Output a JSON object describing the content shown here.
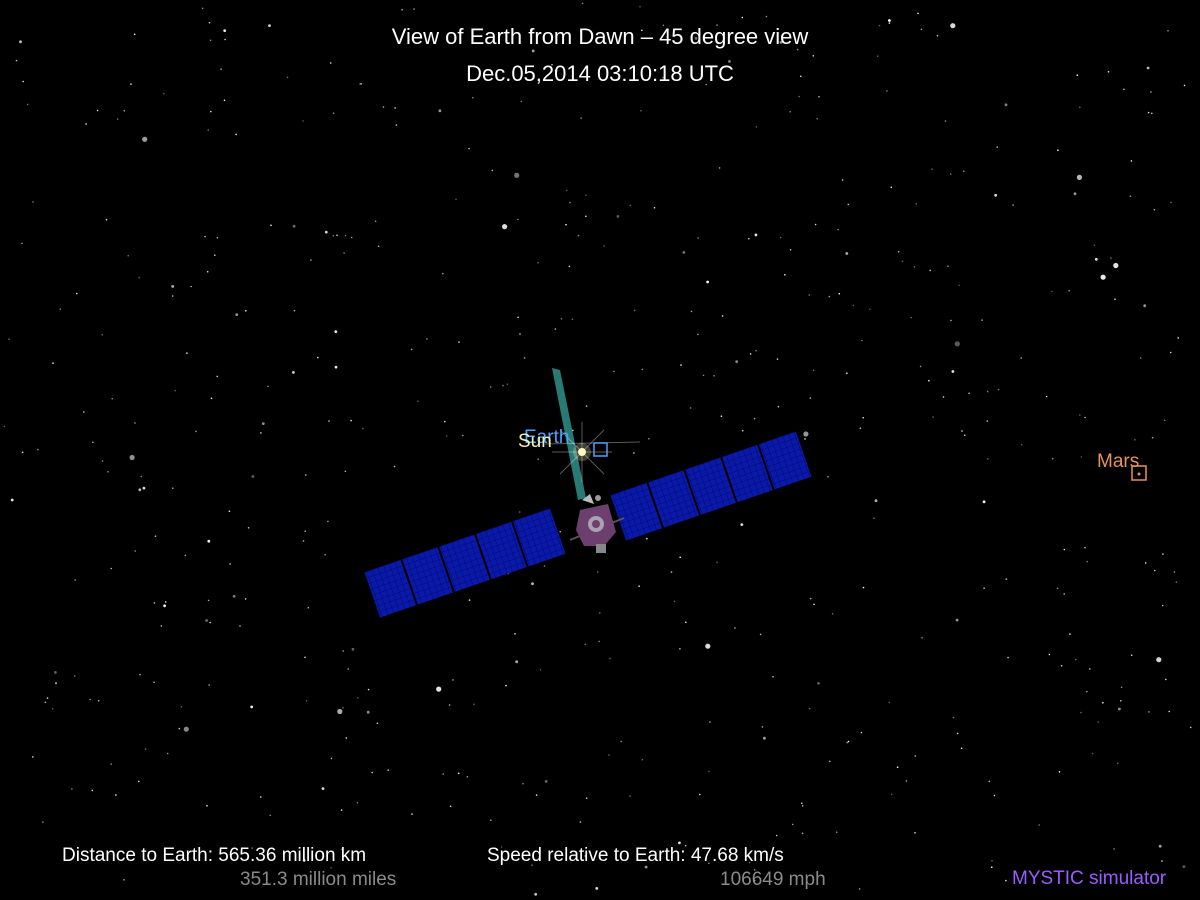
{
  "header": {
    "title": "View of Earth from Dawn – 45 degree view",
    "datetime": "Dec.05,2014 03:10:18  UTC"
  },
  "bodies": {
    "earth": {
      "label": "Earth",
      "color": "#4aa3ff"
    },
    "sun": {
      "label": "Sun",
      "color": "#f2f0b0"
    },
    "mars": {
      "label": "Mars",
      "color": "#e8925a"
    }
  },
  "readouts": {
    "distance_km": "Distance to Earth: 565.36 million km",
    "distance_miles": "351.3 million miles",
    "speed_kms": "Speed relative to Earth: 47.68 km/s",
    "speed_mph": "106649 mph"
  },
  "credit": {
    "text": "MYSTIC simulator",
    "color": "#9b5cff"
  },
  "colors": {
    "background": "#000000",
    "solar_panel": "#0a1aa8",
    "panel_grid": "#00006a",
    "antenna_beam": "#2f8f8a",
    "spacecraft_body": "#6d3f6f"
  }
}
